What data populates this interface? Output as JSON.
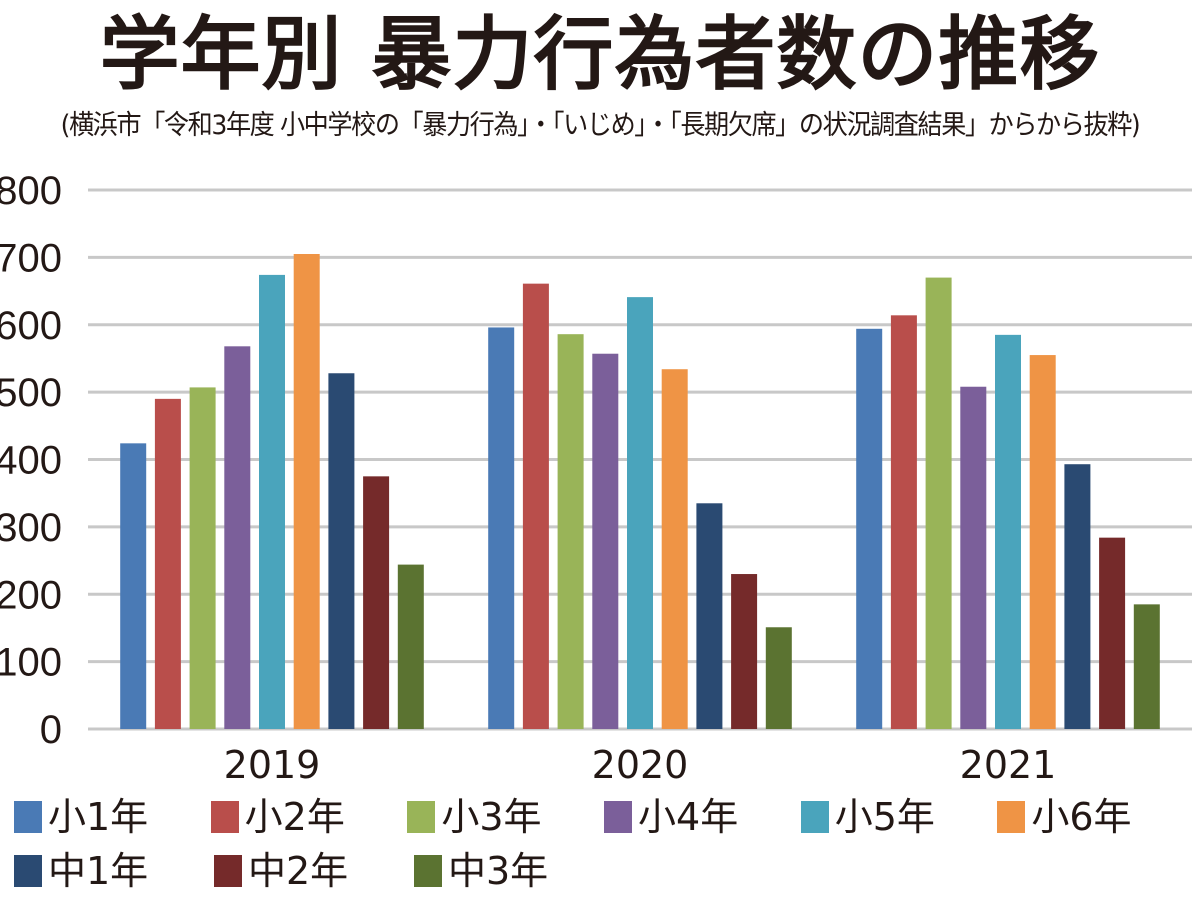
{
  "chart_data": {
    "type": "bar",
    "title": "学年別 暴力行為者数の推移",
    "subtitle": "(横浜市「令和3年度 小中学校の「暴力行為」・「いじめ」・「長期欠席」の状況調査結果」からから抜粋)",
    "xlabel": "",
    "ylabel": "",
    "ylim": [
      0,
      800
    ],
    "yticks": [
      "0",
      "100",
      "200",
      "300",
      "400",
      "500",
      "600",
      "700",
      "800"
    ],
    "grid": true,
    "legend_position": "bottom",
    "categories": [
      "2019",
      "2020",
      "2021"
    ],
    "series": [
      {
        "name": "小1年",
        "color": "#4a7ab5",
        "values": [
          424,
          596,
          594
        ]
      },
      {
        "name": "小2年",
        "color": "#b94e4b",
        "values": [
          490,
          661,
          614
        ]
      },
      {
        "name": "小3年",
        "color": "#99b458",
        "values": [
          507,
          586,
          670
        ]
      },
      {
        "name": "小4年",
        "color": "#7b5f9a",
        "values": [
          568,
          557,
          508
        ]
      },
      {
        "name": "小5年",
        "color": "#4aa4bc",
        "values": [
          674,
          641,
          585
        ]
      },
      {
        "name": "小6年",
        "color": "#ef9445",
        "values": [
          705,
          534,
          555
        ]
      },
      {
        "name": "中1年",
        "color": "#2a4a72",
        "values": [
          528,
          335,
          393
        ]
      },
      {
        "name": "中2年",
        "color": "#752a2a",
        "values": [
          375,
          230,
          284
        ]
      },
      {
        "name": "中3年",
        "color": "#5b7331",
        "values": [
          244,
          151,
          185
        ]
      }
    ]
  }
}
